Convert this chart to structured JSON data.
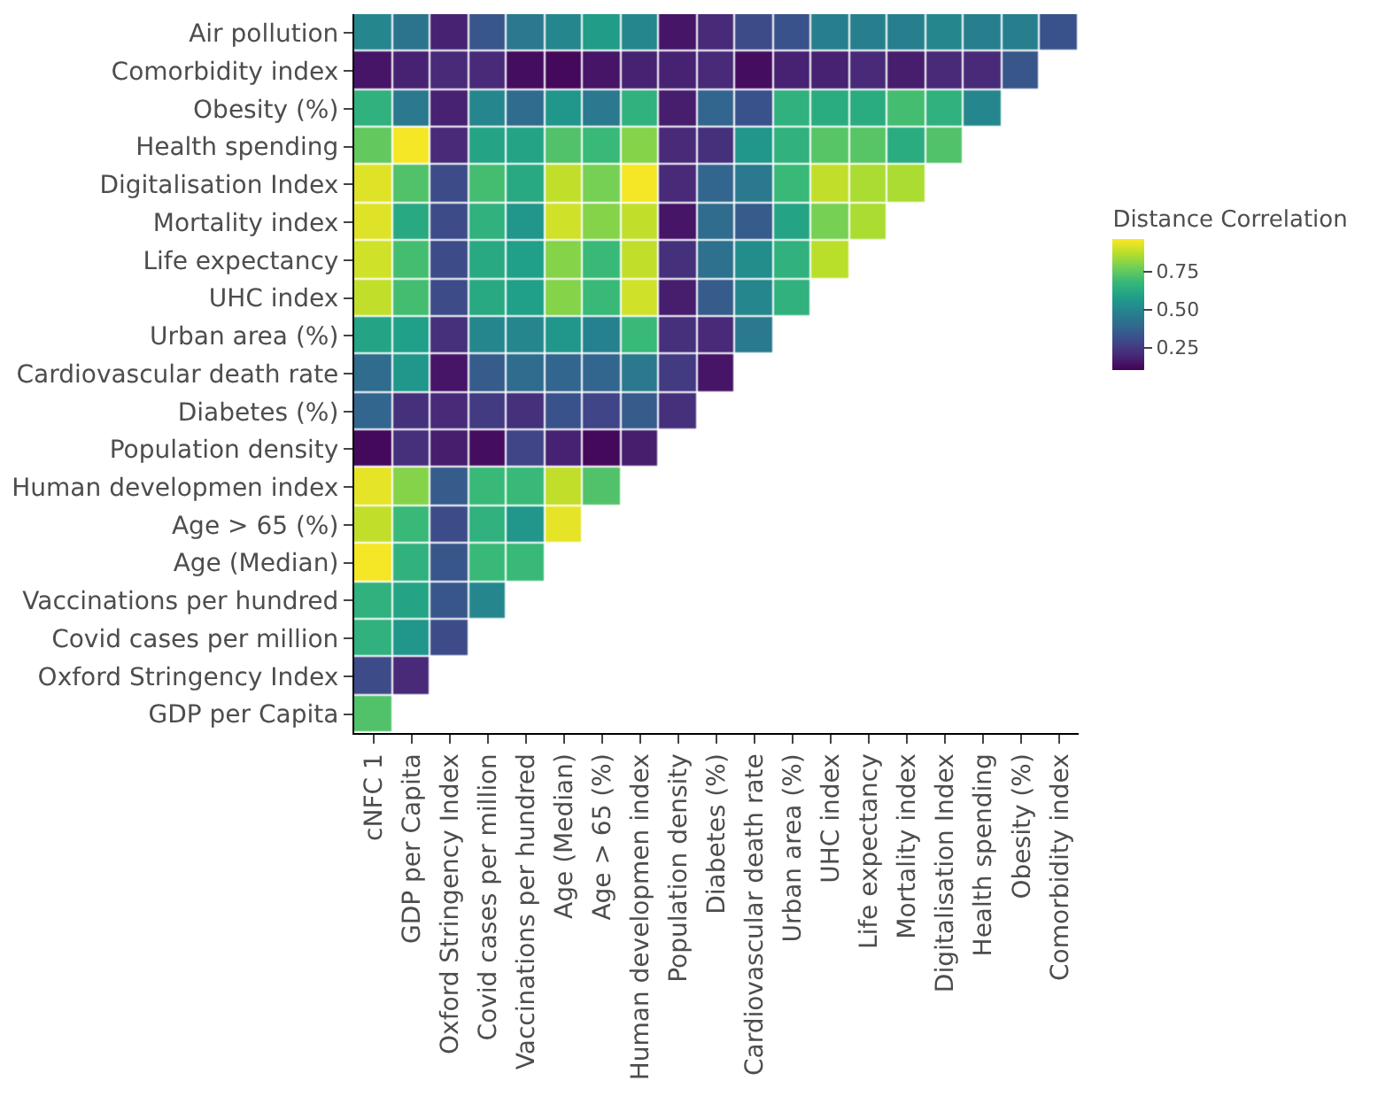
{
  "chart_data": {
    "type": "heatmap",
    "clabel": "Distance Correlation",
    "categories": [
      "cNFC 1",
      "GDP per Capita",
      "Oxford Stringency Index",
      "Covid cases per million",
      "Vaccinations per hundred",
      "Age (Median)",
      "Age > 65 (%)",
      "Human developmen index",
      "Population density",
      "Diabetes (%)",
      "Cardiovascular death rate",
      "Urban area (%)",
      "UHC index",
      "Life expectancy",
      "Mortality index",
      "Digitalisation Index",
      "Health spending",
      "Obesity (%)",
      "Comorbidity index"
    ],
    "y_categories": [
      "Air pollution",
      "Comorbidity index",
      "Obesity (%)",
      "Health spending",
      "Digitalisation Index",
      "Mortality index",
      "Life expectancy",
      "UHC index",
      "Urban area (%)",
      "Cardiovascular death rate",
      "Diabetes (%)",
      "Population density",
      "Human developmen index",
      "Age > 65 (%)",
      "Age (Median)",
      "Vaccinations per hundred",
      "Covid cases per million",
      "Oxford Stringency Index",
      "GDP per Capita"
    ],
    "cells": [
      [
        0.5,
        0.43,
        0.18,
        0.33,
        0.45,
        0.5,
        0.57,
        0.5,
        0.15,
        0.2,
        0.3,
        0.32,
        0.47,
        0.47,
        0.47,
        0.5,
        0.47,
        0.47,
        0.32
      ],
      [
        0.15,
        0.18,
        0.2,
        0.2,
        0.13,
        0.12,
        0.15,
        0.18,
        0.18,
        0.2,
        0.13,
        0.18,
        0.18,
        0.2,
        0.17,
        0.2,
        0.2,
        0.33,
        null
      ],
      [
        0.65,
        0.45,
        0.18,
        0.5,
        0.4,
        0.55,
        0.45,
        0.65,
        0.17,
        0.38,
        0.32,
        0.65,
        0.63,
        0.63,
        0.7,
        0.65,
        0.5,
        null,
        null
      ],
      [
        0.75,
        0.95,
        0.2,
        0.6,
        0.6,
        0.72,
        0.68,
        0.8,
        0.2,
        0.22,
        0.55,
        0.65,
        0.73,
        0.73,
        0.63,
        0.72,
        null,
        null,
        null
      ],
      [
        0.92,
        0.72,
        0.3,
        0.7,
        0.62,
        0.88,
        0.78,
        0.95,
        0.2,
        0.38,
        0.45,
        0.68,
        0.88,
        0.85,
        0.85,
        null,
        null,
        null,
        null
      ],
      [
        0.92,
        0.62,
        0.3,
        0.65,
        0.55,
        0.9,
        0.8,
        0.88,
        0.15,
        0.4,
        0.35,
        0.6,
        0.78,
        0.85,
        null,
        null,
        null,
        null,
        null
      ],
      [
        0.9,
        0.7,
        0.3,
        0.62,
        0.58,
        0.8,
        0.68,
        0.88,
        0.22,
        0.42,
        0.52,
        0.65,
        0.87,
        null,
        null,
        null,
        null,
        null,
        null
      ],
      [
        0.88,
        0.7,
        0.3,
        0.62,
        0.58,
        0.8,
        0.68,
        0.9,
        0.17,
        0.35,
        0.5,
        0.65,
        null,
        null,
        null,
        null,
        null,
        null,
        null
      ],
      [
        0.6,
        0.58,
        0.22,
        0.5,
        0.5,
        0.55,
        0.48,
        0.68,
        0.22,
        0.2,
        0.45,
        null,
        null,
        null,
        null,
        null,
        null,
        null,
        null
      ],
      [
        0.4,
        0.55,
        0.15,
        0.35,
        0.4,
        0.38,
        0.38,
        0.45,
        0.25,
        0.15,
        null,
        null,
        null,
        null,
        null,
        null,
        null,
        null,
        null
      ],
      [
        0.38,
        0.22,
        0.2,
        0.25,
        0.22,
        0.32,
        0.28,
        0.35,
        0.22,
        null,
        null,
        null,
        null,
        null,
        null,
        null,
        null,
        null,
        null
      ],
      [
        0.12,
        0.22,
        0.17,
        0.13,
        0.28,
        0.18,
        0.12,
        0.17,
        null,
        null,
        null,
        null,
        null,
        null,
        null,
        null,
        null,
        null,
        null
      ],
      [
        0.93,
        0.8,
        0.35,
        0.68,
        0.68,
        0.88,
        0.72,
        null,
        null,
        null,
        null,
        null,
        null,
        null,
        null,
        null,
        null,
        null,
        null
      ],
      [
        0.88,
        0.68,
        0.3,
        0.65,
        0.55,
        0.93,
        null,
        null,
        null,
        null,
        null,
        null,
        null,
        null,
        null,
        null,
        null,
        null,
        null
      ],
      [
        0.95,
        0.65,
        0.33,
        0.68,
        0.68,
        null,
        null,
        null,
        null,
        null,
        null,
        null,
        null,
        null,
        null,
        null,
        null,
        null,
        null
      ],
      [
        0.65,
        0.6,
        0.33,
        0.5,
        null,
        null,
        null,
        null,
        null,
        null,
        null,
        null,
        null,
        null,
        null,
        null,
        null,
        null,
        null
      ],
      [
        0.65,
        0.55,
        0.3,
        null,
        null,
        null,
        null,
        null,
        null,
        null,
        null,
        null,
        null,
        null,
        null,
        null,
        null,
        null,
        null
      ],
      [
        0.3,
        0.2,
        null,
        null,
        null,
        null,
        null,
        null,
        null,
        null,
        null,
        null,
        null,
        null,
        null,
        null,
        null,
        null,
        null
      ],
      [
        0.72,
        null,
        null,
        null,
        null,
        null,
        null,
        null,
        null,
        null,
        null,
        null,
        null,
        null,
        null,
        null,
        null,
        null,
        null
      ]
    ],
    "clim": [
      0.1,
      0.96
    ],
    "cticks": [
      0.25,
      {
        "value": 0.5,
        "label": "0.50"
      },
      0.75
    ]
  }
}
